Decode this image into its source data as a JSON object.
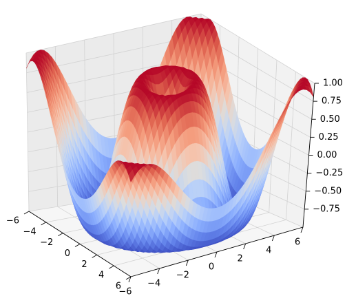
{
  "chart_data": {
    "type": "surface3d",
    "title": "",
    "function": "z = sin(sqrt(x^2 + y^2))",
    "x_range": [
      -6,
      6
    ],
    "y_range": [
      -6,
      6
    ],
    "z_range": [
      -1.0,
      1.0
    ],
    "colormap": "coolwarm",
    "grid": true,
    "x_ticks": [
      -6,
      -4,
      -2,
      0,
      2,
      4,
      6
    ],
    "y_ticks": [
      -6,
      -4,
      -2,
      0,
      2,
      4,
      6
    ],
    "z_ticks": [
      1.0,
      0.75,
      0.5,
      0.25,
      0.0,
      -0.25,
      -0.5,
      -0.75
    ],
    "x_tick_labels": [
      "−6",
      "−4",
      "−2",
      "0",
      "2",
      "4",
      "6"
    ],
    "y_tick_labels": [
      "−6",
      "−4",
      "−2",
      "0",
      "2",
      "4",
      "6"
    ],
    "z_tick_labels": [
      "1.00",
      "0.75",
      "0.50",
      "0.25",
      "0.00",
      "−0.25",
      "−0.50",
      "−0.75"
    ],
    "xlabel": "",
    "ylabel": "",
    "zlabel": ""
  }
}
